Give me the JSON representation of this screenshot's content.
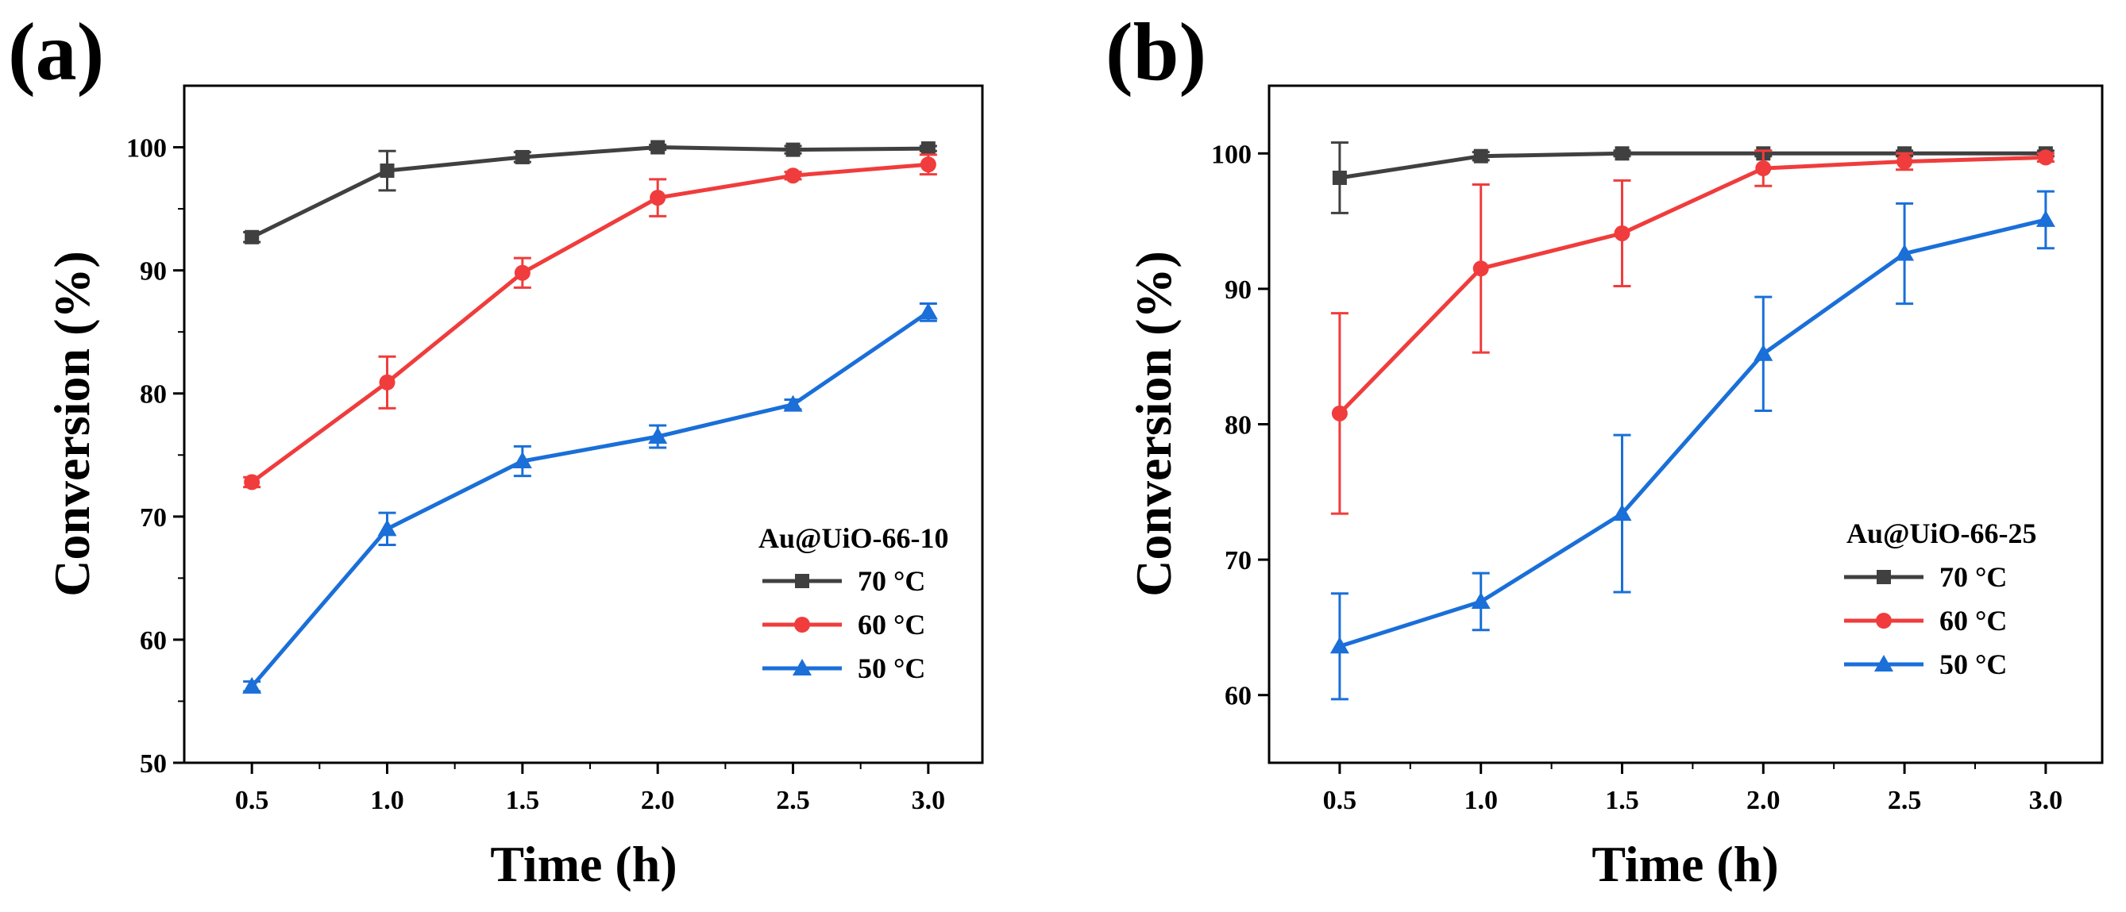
{
  "chart_data": [
    {
      "type": "line",
      "panel_label": "(a)",
      "xlabel": "Time (h)",
      "ylabel": "Conversion (%)",
      "x": [
        0.5,
        1.0,
        1.5,
        2.0,
        2.5,
        3.0
      ],
      "x_tick_labels": [
        "0.5",
        "1.0",
        "1.5",
        "2.0",
        "2.5",
        "3.0"
      ],
      "xlim": [
        0.25,
        3.2
      ],
      "ylim": [
        50,
        105
      ],
      "y_ticks": [
        50,
        60,
        70,
        80,
        90,
        100
      ],
      "y_tick_labels": [
        "50",
        "60",
        "70",
        "80",
        "90",
        "100"
      ],
      "legend_title": "Au@UiO-66-10",
      "legend_position": "right-center",
      "series": [
        {
          "name": "70 °C",
          "color": "#404040",
          "marker": "square",
          "values": [
            92.7,
            98.1,
            99.2,
            100.0,
            99.8,
            99.9
          ],
          "errors": [
            0.4,
            1.6,
            0.4,
            0.2,
            0.3,
            0.2
          ]
        },
        {
          "name": "60 °C",
          "color": "#f03c3c",
          "marker": "circle",
          "values": [
            72.8,
            80.9,
            89.8,
            95.9,
            97.7,
            98.6
          ],
          "errors": [
            0.4,
            2.1,
            1.2,
            1.5,
            0.3,
            0.8
          ]
        },
        {
          "name": "50 °C",
          "color": "#1a6fd8",
          "marker": "triangle",
          "values": [
            56.2,
            69.0,
            74.5,
            76.5,
            79.1,
            86.6
          ],
          "errors": [
            0.4,
            1.3,
            1.2,
            0.9,
            0.4,
            0.7
          ]
        }
      ]
    },
    {
      "type": "line",
      "panel_label": "(b)",
      "xlabel": "Time (h)",
      "ylabel": "Conversion (%)",
      "x": [
        0.5,
        1.0,
        1.5,
        2.0,
        2.5,
        3.0
      ],
      "x_tick_labels": [
        "0.5",
        "1.0",
        "1.5",
        "2.0",
        "2.5",
        "3.0"
      ],
      "xlim": [
        0.25,
        3.2
      ],
      "ylim": [
        55,
        105
      ],
      "y_ticks": [
        60,
        70,
        80,
        90,
        100
      ],
      "y_tick_labels": [
        "60",
        "70",
        "80",
        "90",
        "100"
      ],
      "legend_title": "Au@UiO-66-25",
      "legend_position": "right-center",
      "series": [
        {
          "name": "70 °C",
          "color": "#404040",
          "marker": "square",
          "values": [
            98.2,
            99.8,
            100.0,
            100.0,
            100.0,
            100.0
          ],
          "errors": [
            2.6,
            0.3,
            0.2,
            0.2,
            0.2,
            0.2
          ]
        },
        {
          "name": "60 °C",
          "color": "#f03c3c",
          "marker": "circle",
          "values": [
            80.8,
            91.5,
            94.1,
            98.9,
            99.4,
            99.7
          ],
          "errors": [
            7.4,
            6.2,
            3.9,
            1.3,
            0.6,
            0.3
          ]
        },
        {
          "name": "50 °C",
          "color": "#1a6fd8",
          "marker": "triangle",
          "values": [
            63.6,
            66.9,
            73.4,
            85.2,
            92.6,
            95.1
          ],
          "errors": [
            3.9,
            2.1,
            5.8,
            4.2,
            3.7,
            2.1
          ]
        }
      ]
    }
  ]
}
